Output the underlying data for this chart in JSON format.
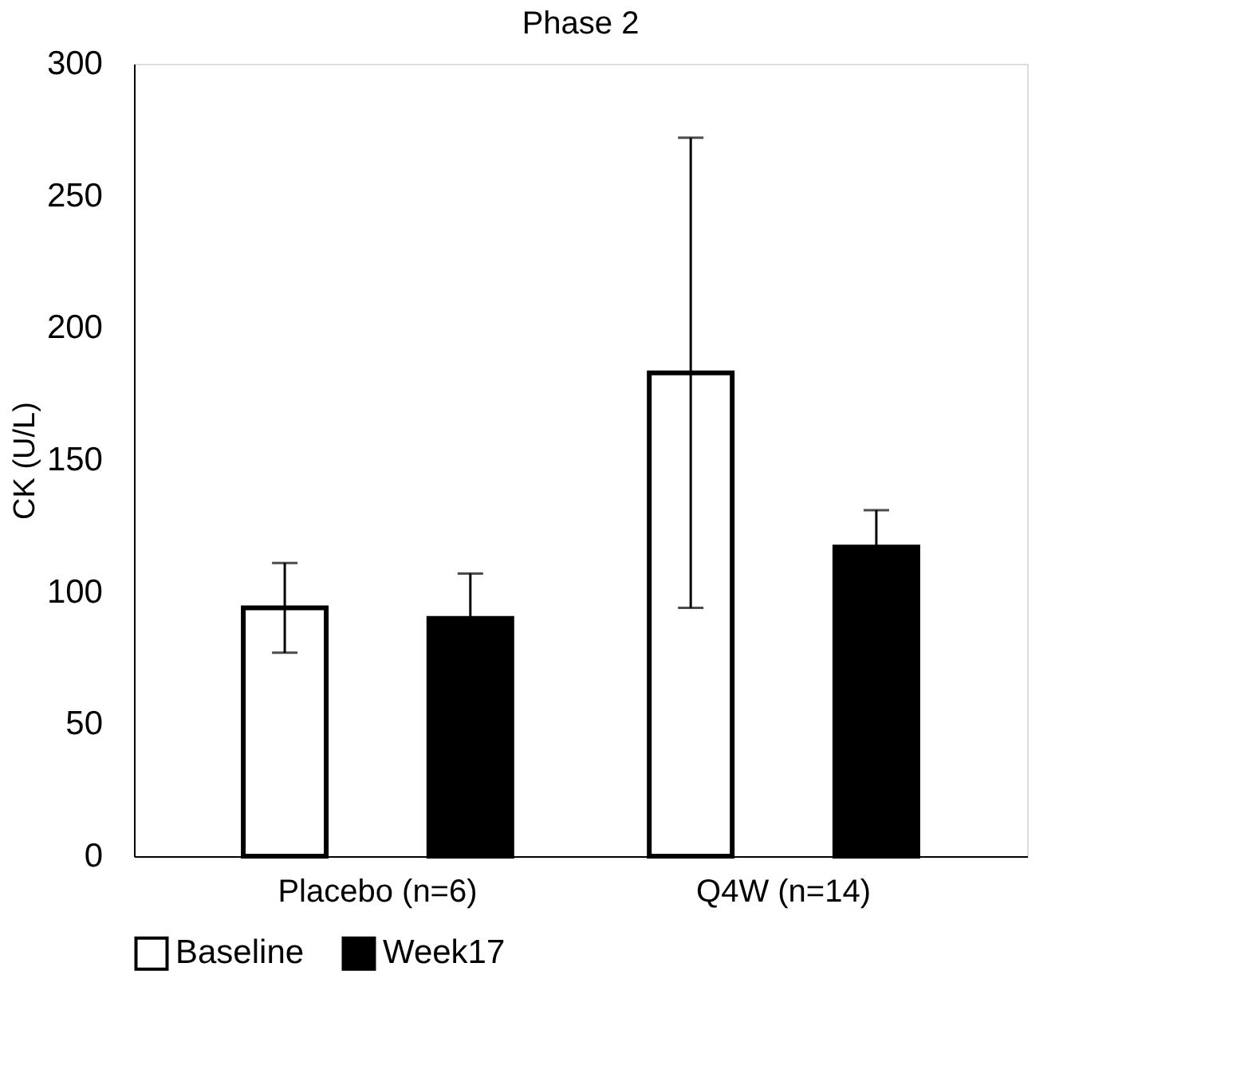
{
  "chart_data": {
    "type": "bar",
    "title": "Phase 2",
    "ylabel": "CK (U/L)",
    "categories": [
      "Placebo (n=6)",
      "Q4W (n=14)"
    ],
    "series": [
      {
        "name": "Baseline",
        "color": "#ffffff",
        "values": [
          94,
          183
        ],
        "errors": [
          17,
          89
        ]
      },
      {
        "name": "Week17",
        "color": "#000000",
        "values": [
          90,
          117
        ],
        "errors": [
          17,
          14
        ]
      }
    ],
    "ylim": [
      0,
      300
    ],
    "yticks": [
      0,
      50,
      100,
      150,
      200,
      250,
      300
    ],
    "grid": false,
    "legend": "bottom"
  }
}
